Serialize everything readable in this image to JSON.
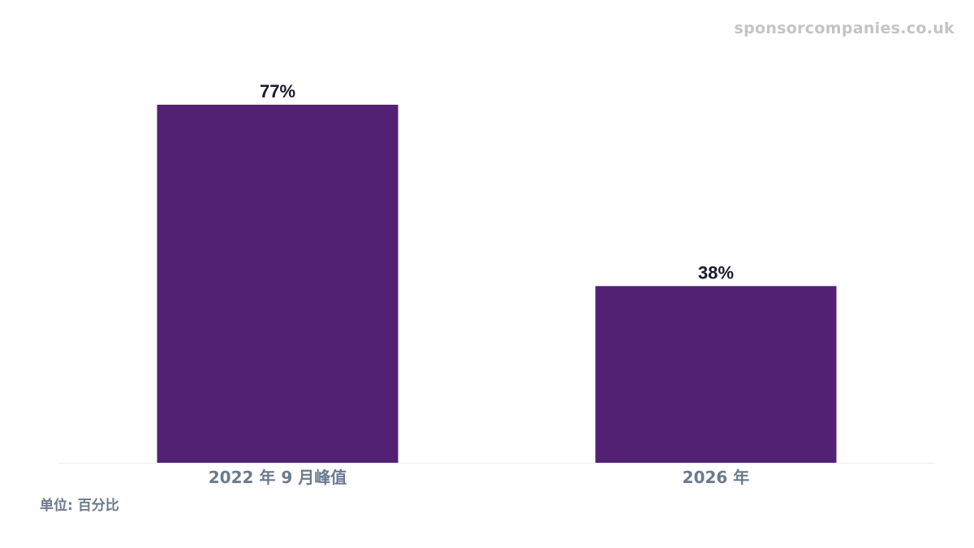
{
  "watermark": "sponsorcompanies.co.uk",
  "unit_label": "单位: 百分比",
  "chart_data": {
    "type": "bar",
    "categories": [
      "2022 年 9 月峰值",
      "2026 年"
    ],
    "values": [
      77,
      38
    ],
    "value_labels": [
      "77%",
      "38%"
    ],
    "title": "",
    "xlabel": "",
    "ylabel": "",
    "ylim": [
      0,
      77
    ],
    "grid": false,
    "legend": "none",
    "colors": {
      "bar": "#522173",
      "value_label": "#1a1a2e",
      "tick_label": "#6b7a90",
      "baseline": "#eeeeee"
    }
  }
}
